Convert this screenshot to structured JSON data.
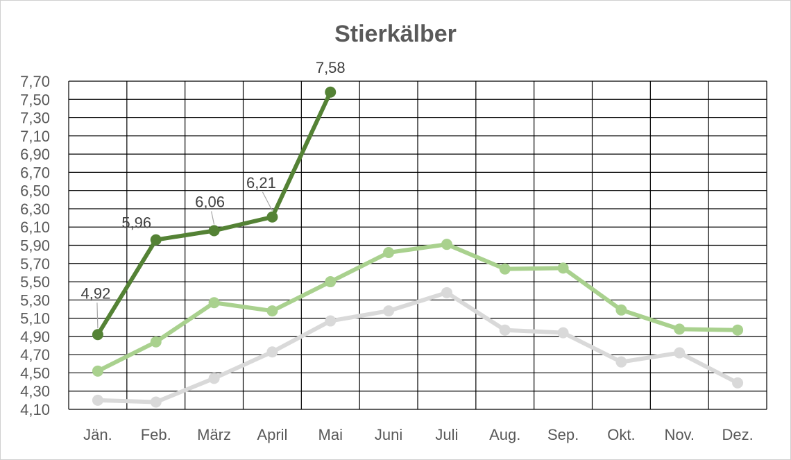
{
  "chart_data": {
    "type": "line",
    "title": "Stierkälber",
    "xlabel": "",
    "ylabel": "",
    "categories": [
      "Jän.",
      "Feb.",
      "März",
      "April",
      "Mai",
      "Juni",
      "Juli",
      "Aug.",
      "Sep.",
      "Okt.",
      "Nov.",
      "Dez."
    ],
    "ylim": [
      4.1,
      7.7
    ],
    "y_step": 0.2,
    "y_ticks": [
      "4,10",
      "4,30",
      "4,50",
      "4,70",
      "4,90",
      "5,10",
      "5,30",
      "5,50",
      "5,70",
      "5,90",
      "6,10",
      "6,30",
      "6,50",
      "6,70",
      "6,90",
      "7,10",
      "7,30",
      "7,50",
      "7,70"
    ],
    "grid": true,
    "legend": "none",
    "series": [
      {
        "color": "#d9d9d9",
        "values": [
          4.2,
          4.18,
          4.44,
          4.73,
          5.07,
          5.18,
          5.38,
          4.97,
          4.94,
          4.62,
          4.72,
          4.39
        ]
      },
      {
        "color": "#a9d18e",
        "values": [
          4.52,
          4.84,
          5.27,
          5.18,
          5.5,
          5.82,
          5.91,
          5.64,
          5.65,
          5.19,
          4.98,
          4.97
        ]
      },
      {
        "color": "#548235",
        "values": [
          4.92,
          5.96,
          6.06,
          6.21,
          7.58,
          null,
          null,
          null,
          null,
          null,
          null,
          null
        ],
        "data_labels": [
          "4,92",
          "5,96",
          "6,06",
          "6,21",
          "7,58"
        ]
      }
    ]
  }
}
